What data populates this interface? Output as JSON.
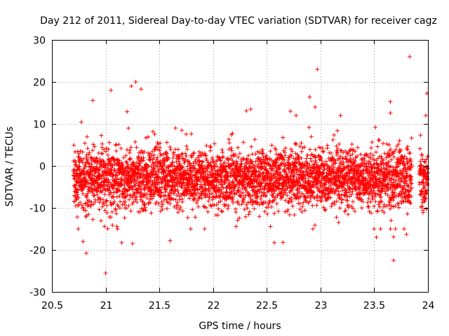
{
  "chart_data": {
    "type": "scatter",
    "title": "Day 212 of 2011, Sidereal Day-to-day VTEC variation (SDTVAR) for receiver cagz",
    "xlabel": "GPS time / hours",
    "ylabel": "SDTVAR / TECUs",
    "xlim": [
      20.5,
      24
    ],
    "ylim": [
      -30,
      30
    ],
    "xticks": [
      20.5,
      21,
      21.5,
      22,
      22.5,
      23,
      23.5,
      24
    ],
    "xtick_labels": [
      "20.5",
      "21",
      "21.5",
      "22",
      "22.5",
      "23",
      "23.5",
      "24"
    ],
    "yticks": [
      -30,
      -20,
      -10,
      0,
      10,
      20,
      30
    ],
    "ytick_labels": [
      "-30",
      "-20",
      "-10",
      "0",
      "10",
      "20",
      "30"
    ],
    "grid": true,
    "marker": "+",
    "color": "#ff0000",
    "series": [
      {
        "name": "SDTVAR",
        "x_range": [
          20.7,
          24.0
        ],
        "gaps": [
          [
            23.85,
            23.92
          ]
        ],
        "sample_interval_hours": 0.00083,
        "typical_center": -3,
        "typical_spread": 4,
        "outliers": [
          {
            "x": 21.0,
            "y": -25.5
          },
          {
            "x": 20.82,
            "y": -20.8
          },
          {
            "x": 20.79,
            "y": -18.0
          },
          {
            "x": 21.15,
            "y": -18.3
          },
          {
            "x": 21.25,
            "y": -18.5
          },
          {
            "x": 21.6,
            "y": -17.8
          },
          {
            "x": 22.57,
            "y": -18.3
          },
          {
            "x": 22.65,
            "y": -18.2
          },
          {
            "x": 23.52,
            "y": -17.0
          },
          {
            "x": 23.8,
            "y": -16.3
          },
          {
            "x": 23.68,
            "y": -22.5
          },
          {
            "x": 23.68,
            "y": -16.9
          },
          {
            "x": 21.05,
            "y": 18.0
          },
          {
            "x": 21.24,
            "y": 19.0
          },
          {
            "x": 21.28,
            "y": 20.0
          },
          {
            "x": 21.33,
            "y": 18.3
          },
          {
            "x": 20.88,
            "y": 15.6
          },
          {
            "x": 22.35,
            "y": 13.5
          },
          {
            "x": 22.31,
            "y": 13.1
          },
          {
            "x": 22.97,
            "y": 23.0
          },
          {
            "x": 22.9,
            "y": 16.4
          },
          {
            "x": 23.83,
            "y": 26.0
          },
          {
            "x": 23.99,
            "y": 17.3
          },
          {
            "x": 23.65,
            "y": 15.3
          },
          {
            "x": 21.2,
            "y": 12.9
          },
          {
            "x": 21.65,
            "y": 9.0
          },
          {
            "x": 22.95,
            "y": 14.0
          },
          {
            "x": 22.72,
            "y": 13.0
          },
          {
            "x": 23.98,
            "y": 12.0
          },
          {
            "x": 23.65,
            "y": 12.6
          }
        ]
      }
    ]
  }
}
